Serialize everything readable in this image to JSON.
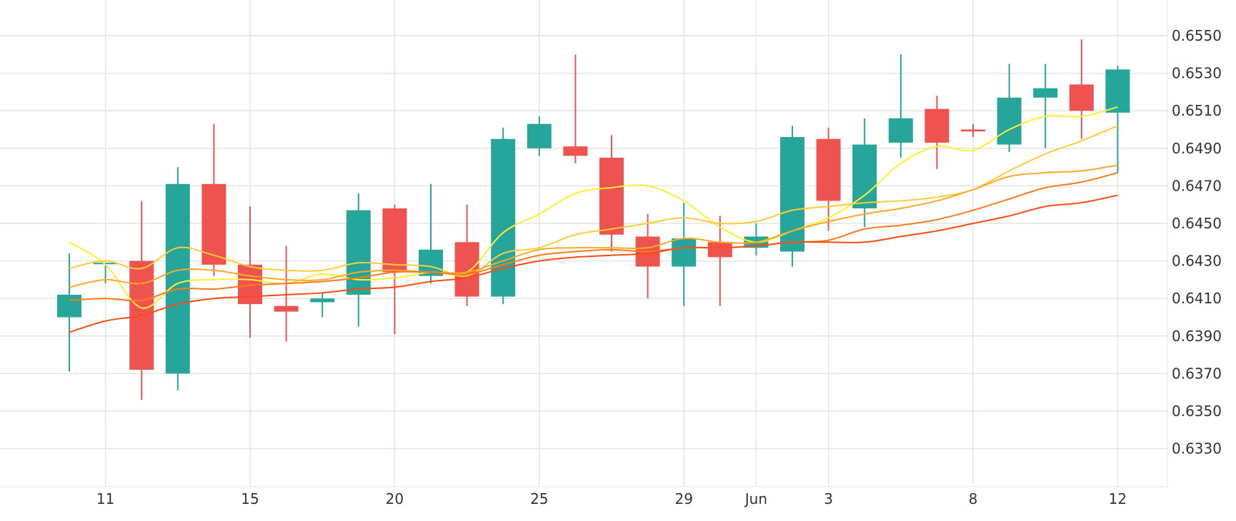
{
  "colors": {
    "up": "#26a69a",
    "down": "#ef5350",
    "grid": "#e4e4e4",
    "text": "#333333"
  },
  "chart_data": {
    "type": "candlestick",
    "title": "",
    "xlabel": "",
    "ylabel": "",
    "ylim": [
      0.6318,
      0.6562
    ],
    "grid": true,
    "legend": "none",
    "y_ticks": [
      "0.6330",
      "0.6350",
      "0.6370",
      "0.6390",
      "0.6410",
      "0.6430",
      "0.6450",
      "0.6470",
      "0.6490",
      "0.6510",
      "0.6530",
      "0.6550"
    ],
    "x_ticks": [
      {
        "label": "11",
        "index": 1
      },
      {
        "label": "15",
        "index": 5
      },
      {
        "label": "20",
        "index": 9
      },
      {
        "label": "25",
        "index": 13
      },
      {
        "label": "29",
        "index": 17
      },
      {
        "label": "Jun",
        "index": 19
      },
      {
        "label": "3",
        "index": 21
      },
      {
        "label": "8",
        "index": 25
      },
      {
        "label": "12",
        "index": 29
      }
    ],
    "candles": [
      {
        "o": 0.64,
        "h": 0.6434,
        "l": 0.6371,
        "c": 0.6412
      },
      {
        "o": 0.6429,
        "h": 0.6429,
        "l": 0.6418,
        "c": 0.6429
      },
      {
        "o": 0.643,
        "h": 0.6462,
        "l": 0.6356,
        "c": 0.6372
      },
      {
        "o": 0.637,
        "h": 0.648,
        "l": 0.6361,
        "c": 0.6471
      },
      {
        "o": 0.6471,
        "h": 0.6503,
        "l": 0.6422,
        "c": 0.6428
      },
      {
        "o": 0.6428,
        "h": 0.6459,
        "l": 0.6389,
        "c": 0.6407
      },
      {
        "o": 0.6406,
        "h": 0.6438,
        "l": 0.6387,
        "c": 0.6403
      },
      {
        "o": 0.6408,
        "h": 0.6413,
        "l": 0.64,
        "c": 0.641
      },
      {
        "o": 0.6412,
        "h": 0.6466,
        "l": 0.6395,
        "c": 0.6457
      },
      {
        "o": 0.6458,
        "h": 0.646,
        "l": 0.6391,
        "c": 0.6424
      },
      {
        "o": 0.6422,
        "h": 0.6471,
        "l": 0.6418,
        "c": 0.6436
      },
      {
        "o": 0.644,
        "h": 0.646,
        "l": 0.6406,
        "c": 0.6411
      },
      {
        "o": 0.6411,
        "h": 0.6501,
        "l": 0.6407,
        "c": 0.6495
      },
      {
        "o": 0.649,
        "h": 0.6507,
        "l": 0.6486,
        "c": 0.6503
      },
      {
        "o": 0.6491,
        "h": 0.654,
        "l": 0.6482,
        "c": 0.6486
      },
      {
        "o": 0.6485,
        "h": 0.6497,
        "l": 0.6435,
        "c": 0.6444
      },
      {
        "o": 0.6443,
        "h": 0.6455,
        "l": 0.641,
        "c": 0.6427
      },
      {
        "o": 0.6427,
        "h": 0.6461,
        "l": 0.6406,
        "c": 0.6442
      },
      {
        "o": 0.644,
        "h": 0.6454,
        "l": 0.6406,
        "c": 0.6432
      },
      {
        "o": 0.6437,
        "h": 0.645,
        "l": 0.6433,
        "c": 0.6443
      },
      {
        "o": 0.6435,
        "h": 0.6502,
        "l": 0.6427,
        "c": 0.6496
      },
      {
        "o": 0.6495,
        "h": 0.6501,
        "l": 0.6446,
        "c": 0.6462
      },
      {
        "o": 0.6458,
        "h": 0.6506,
        "l": 0.6448,
        "c": 0.6492
      },
      {
        "o": 0.6493,
        "h": 0.654,
        "l": 0.6485,
        "c": 0.6506
      },
      {
        "o": 0.6511,
        "h": 0.6518,
        "l": 0.6479,
        "c": 0.6493
      },
      {
        "o": 0.65,
        "h": 0.6503,
        "l": 0.6496,
        "c": 0.6499
      },
      {
        "o": 0.6492,
        "h": 0.6535,
        "l": 0.6488,
        "c": 0.6517
      },
      {
        "o": 0.6517,
        "h": 0.6535,
        "l": 0.649,
        "c": 0.6522
      },
      {
        "o": 0.6524,
        "h": 0.6548,
        "l": 0.6495,
        "c": 0.651
      },
      {
        "o": 0.6509,
        "h": 0.6534,
        "l": 0.6477,
        "c": 0.6532
      }
    ],
    "moving_averages": [
      {
        "color": "#ffee33",
        "values": [
          0.644,
          0.6428,
          0.6405,
          0.6418,
          0.642,
          0.642,
          0.6418,
          0.6423,
          0.642,
          0.6421,
          0.6424,
          0.6424,
          0.6445,
          0.6455,
          0.6466,
          0.6469,
          0.647,
          0.6462,
          0.6448,
          0.644,
          0.6446,
          0.6453,
          0.6465,
          0.6482,
          0.6491,
          0.6489,
          0.65,
          0.6507,
          0.6507,
          0.6512
        ]
      },
      {
        "color": "#ffcc33",
        "values": [
          0.6426,
          0.643,
          0.6426,
          0.6437,
          0.6433,
          0.6427,
          0.6425,
          0.6425,
          0.6429,
          0.6428,
          0.6427,
          0.6422,
          0.6434,
          0.6437,
          0.6444,
          0.6447,
          0.645,
          0.6453,
          0.645,
          0.6451,
          0.6457,
          0.6459,
          0.6461,
          0.6462,
          0.6464,
          0.6468,
          0.6478,
          0.6487,
          0.6494,
          0.6502
        ]
      },
      {
        "color": "#ffa726",
        "values": [
          0.6416,
          0.642,
          0.6418,
          0.6425,
          0.6425,
          0.6422,
          0.642,
          0.642,
          0.6424,
          0.6425,
          0.6424,
          0.6424,
          0.643,
          0.6436,
          0.6437,
          0.6437,
          0.6437,
          0.6442,
          0.644,
          0.644,
          0.6446,
          0.6451,
          0.6455,
          0.6458,
          0.6462,
          0.6468,
          0.6475,
          0.6477,
          0.6478,
          0.6481
        ]
      },
      {
        "color": "#ff7a1a",
        "values": [
          0.6409,
          0.641,
          0.6409,
          0.6415,
          0.6415,
          0.6417,
          0.6418,
          0.6419,
          0.6421,
          0.6424,
          0.6424,
          0.6423,
          0.6428,
          0.6433,
          0.6435,
          0.6436,
          0.6435,
          0.6437,
          0.6437,
          0.6438,
          0.644,
          0.6441,
          0.6447,
          0.6449,
          0.6452,
          0.6457,
          0.6463,
          0.6469,
          0.6472,
          0.6477
        ]
      },
      {
        "color": "#ff4a12",
        "values": [
          0.6392,
          0.6398,
          0.6401,
          0.6407,
          0.641,
          0.6411,
          0.6412,
          0.6413,
          0.6415,
          0.6416,
          0.6419,
          0.6421,
          0.6426,
          0.643,
          0.6432,
          0.6433,
          0.6434,
          0.6437,
          0.6437,
          0.6438,
          0.644,
          0.644,
          0.644,
          0.6443,
          0.6446,
          0.645,
          0.6454,
          0.6459,
          0.6461,
          0.6465
        ]
      }
    ]
  }
}
